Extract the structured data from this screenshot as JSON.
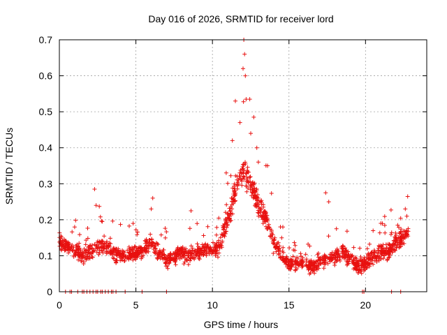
{
  "chart_data": {
    "type": "scatter",
    "title": "Day 016 of 2026, SRMTID for receiver lord",
    "xlabel": "GPS time / hours",
    "ylabel": "SRMTID / TECUs",
    "xlim": [
      0,
      24
    ],
    "ylim": [
      0,
      0.7
    ],
    "xticks": [
      0,
      5,
      10,
      15,
      20
    ],
    "yticks": [
      0,
      0.1,
      0.2,
      0.3,
      0.4,
      0.5,
      0.6,
      0.7
    ],
    "grid": true,
    "marker": "+",
    "marker_color": "#e8100f",
    "series": [
      {
        "name": "SRMTID",
        "trend": [
          [
            0.0,
            0.14
          ],
          [
            0.8,
            0.12
          ],
          [
            1.5,
            0.1
          ],
          [
            2.0,
            0.11
          ],
          [
            2.5,
            0.13
          ],
          [
            3.0,
            0.12
          ],
          [
            3.5,
            0.11
          ],
          [
            4.0,
            0.1
          ],
          [
            4.5,
            0.1
          ],
          [
            5.0,
            0.11
          ],
          [
            5.5,
            0.12
          ],
          [
            6.0,
            0.14
          ],
          [
            6.5,
            0.11
          ],
          [
            7.0,
            0.09
          ],
          [
            7.5,
            0.1
          ],
          [
            8.0,
            0.11
          ],
          [
            8.5,
            0.1
          ],
          [
            9.0,
            0.11
          ],
          [
            9.5,
            0.12
          ],
          [
            10.0,
            0.11
          ],
          [
            10.5,
            0.13
          ],
          [
            11.0,
            0.2
          ],
          [
            11.5,
            0.28
          ],
          [
            12.0,
            0.34
          ],
          [
            12.5,
            0.3
          ],
          [
            13.0,
            0.25
          ],
          [
            13.5,
            0.2
          ],
          [
            14.0,
            0.14
          ],
          [
            14.5,
            0.1
          ],
          [
            15.0,
            0.08
          ],
          [
            15.5,
            0.08
          ],
          [
            16.0,
            0.08
          ],
          [
            16.5,
            0.07
          ],
          [
            17.0,
            0.08
          ],
          [
            17.5,
            0.09
          ],
          [
            18.0,
            0.1
          ],
          [
            18.5,
            0.11
          ],
          [
            19.0,
            0.09
          ],
          [
            19.5,
            0.07
          ],
          [
            20.0,
            0.08
          ],
          [
            20.5,
            0.1
          ],
          [
            21.0,
            0.11
          ],
          [
            21.5,
            0.11
          ],
          [
            22.0,
            0.14
          ],
          [
            22.5,
            0.15
          ],
          [
            22.8,
            0.17
          ]
        ],
        "spikes": [
          [
            0.1,
            0.155
          ],
          [
            1.0,
            0.18
          ],
          [
            2.3,
            0.285
          ],
          [
            2.4,
            0.24
          ],
          [
            2.8,
            0.195
          ],
          [
            6.0,
            0.23
          ],
          [
            6.1,
            0.26
          ],
          [
            8.6,
            0.225
          ],
          [
            10.9,
            0.33
          ],
          [
            11.3,
            0.42
          ],
          [
            11.5,
            0.53
          ],
          [
            11.8,
            0.47
          ],
          [
            12.0,
            0.62
          ],
          [
            12.05,
            0.7
          ],
          [
            12.1,
            0.66
          ],
          [
            12.15,
            0.6
          ],
          [
            12.2,
            0.535
          ],
          [
            12.5,
            0.44
          ],
          [
            12.7,
            0.485
          ],
          [
            12.9,
            0.4
          ],
          [
            13.0,
            0.36
          ],
          [
            13.6,
            0.35
          ],
          [
            14.6,
            0.18
          ],
          [
            17.4,
            0.275
          ],
          [
            17.6,
            0.25
          ],
          [
            18.1,
            0.175
          ],
          [
            21.0,
            0.19
          ],
          [
            22.1,
            0.185
          ],
          [
            22.6,
            0.23
          ],
          [
            22.7,
            0.21
          ]
        ],
        "zeros": [
          0.4,
          0.7,
          0.8,
          1.2,
          1.5,
          1.6,
          1.8,
          2.0,
          2.2,
          2.4,
          2.5,
          2.7,
          2.8,
          3.0,
          3.2,
          3.4,
          3.5,
          3.7,
          4.3,
          5.4,
          7.0,
          19.8,
          19.9,
          21.7,
          22.3
        ],
        "n_points": 1700,
        "spread": 0.035
      }
    ]
  }
}
